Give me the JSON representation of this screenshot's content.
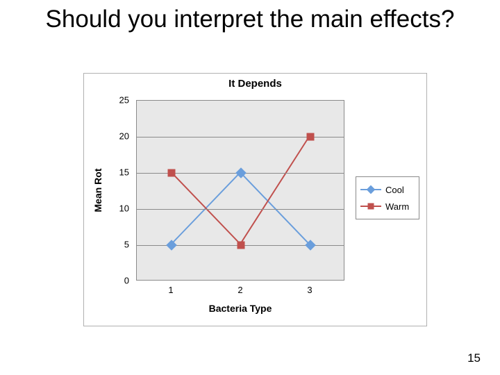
{
  "slide": {
    "title": "Should you interpret the main effects?",
    "page_number": "15"
  },
  "chart": {
    "type": "line",
    "title": "It Depends",
    "title_fontsize": 15,
    "title_color": "#000000",
    "x_axis_title": "Bacteria Type",
    "y_axis_title": "Mean Rot",
    "axis_title_fontsize": 14,
    "plot_bg": "#e8e8e8",
    "grid_color": "#8a8a8a",
    "border_color": "#8a8a8a",
    "ylim": [
      0,
      25
    ],
    "yticks": [
      0,
      5,
      10,
      15,
      20,
      25
    ],
    "categories": [
      "1",
      "2",
      "3"
    ],
    "series": [
      {
        "name": "Cool",
        "color": "#6a9edc",
        "marker": "diamond",
        "line_width": 2,
        "values": [
          5,
          15,
          5
        ]
      },
      {
        "name": "Warm",
        "color": "#c0504d",
        "marker": "square",
        "line_width": 2,
        "values": [
          15,
          5,
          20
        ]
      }
    ],
    "legend": {
      "position": "right",
      "cool_label": "Cool",
      "warm_label": "Warm"
    }
  }
}
